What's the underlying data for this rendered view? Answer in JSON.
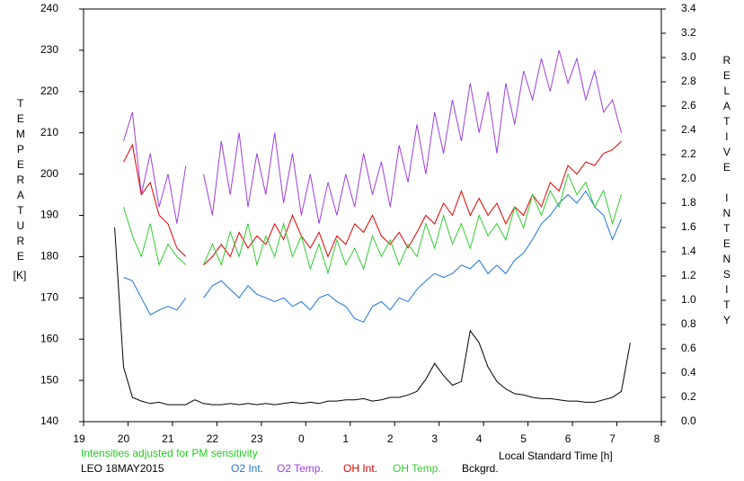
{
  "chart_data": {
    "type": "line",
    "ylabel": "TEMPERATURE",
    "yunit": "[K]",
    "y2label": "RELATIVE INTENSITY",
    "xlabel": "Local Standard Time [h]",
    "annotations": [
      "Intensities adjusted for PM sensitivity",
      "LEO 18MAY2015"
    ],
    "annotation_colors": [
      "#22cc22",
      "#000000"
    ],
    "xlim": [
      19,
      32
    ],
    "xticks": [
      19,
      20,
      21,
      22,
      23,
      {
        "value": 24,
        "label": "0"
      },
      {
        "value": 25,
        "label": "1"
      },
      {
        "value": 26,
        "label": "2"
      },
      {
        "value": 27,
        "label": "3"
      },
      {
        "value": 28,
        "label": "4"
      },
      {
        "value": 29,
        "label": "5"
      },
      {
        "value": 30,
        "label": "6"
      },
      {
        "value": 31,
        "label": "7"
      },
      {
        "value": 32,
        "label": "8"
      }
    ],
    "ylim": [
      140,
      240
    ],
    "yticks": [
      140,
      150,
      160,
      170,
      180,
      190,
      200,
      210,
      220,
      230,
      240
    ],
    "y2lim": [
      0,
      3.4
    ],
    "y2ticks": [
      {
        "value": 0,
        "label": "0.0"
      },
      0.2,
      0.4,
      0.6,
      0.8,
      {
        "value": 1,
        "label": "1.0"
      },
      1.2,
      1.4,
      1.6,
      1.8,
      {
        "value": 2,
        "label": "2.0"
      },
      2.2,
      2.4,
      2.6,
      2.8,
      {
        "value": 3,
        "label": "3.0"
      },
      3.2,
      3.4
    ],
    "x": [
      19.7,
      19.9,
      20.1,
      20.3,
      20.5,
      20.7,
      20.9,
      21.1,
      21.3,
      21.5,
      21.7,
      21.9,
      22.1,
      22.3,
      22.5,
      22.7,
      22.9,
      23.1,
      23.3,
      23.5,
      23.7,
      23.9,
      24.1,
      24.3,
      24.5,
      24.7,
      24.9,
      25.1,
      25.3,
      25.5,
      25.7,
      25.9,
      26.1,
      26.3,
      26.5,
      26.7,
      26.9,
      27.1,
      27.3,
      27.5,
      27.7,
      27.9,
      28.1,
      28.3,
      28.5,
      28.7,
      28.9,
      29.1,
      29.3,
      29.5,
      29.7,
      29.9,
      30.1,
      30.3,
      30.5,
      30.7,
      30.9,
      31.1,
      31.3,
      31.5
    ],
    "series": [
      {
        "name": "O2 Int.",
        "color": "#1f73d8",
        "axis": "y2",
        "values": [
          null,
          1.19,
          1.16,
          1.02,
          0.88,
          0.92,
          0.95,
          0.92,
          1.02,
          null,
          1.02,
          1.12,
          1.16,
          1.09,
          1.02,
          1.12,
          1.05,
          1.02,
          0.99,
          1.02,
          0.95,
          0.99,
          0.92,
          1.02,
          1.05,
          0.99,
          0.95,
          0.85,
          0.82,
          0.95,
          0.99,
          0.92,
          1.02,
          0.99,
          1.09,
          1.16,
          1.22,
          1.19,
          1.22,
          1.29,
          1.26,
          1.33,
          1.22,
          1.29,
          1.22,
          1.33,
          1.39,
          1.5,
          1.63,
          1.7,
          1.8,
          1.87,
          1.8,
          1.9,
          1.77,
          1.7,
          1.5,
          1.67,
          null,
          null
        ]
      },
      {
        "name": "O2 Temp.",
        "color": "#9b3fdc",
        "values": [
          null,
          208,
          215,
          195,
          205,
          192,
          200,
          188,
          202,
          null,
          200,
          190,
          208,
          195,
          210,
          192,
          205,
          195,
          210,
          193,
          205,
          190,
          200,
          188,
          198,
          190,
          200,
          192,
          205,
          195,
          203,
          192,
          207,
          198,
          212,
          200,
          215,
          205,
          218,
          208,
          222,
          210,
          220,
          205,
          222,
          212,
          225,
          218,
          228,
          220,
          230,
          222,
          228,
          218,
          225,
          215,
          218,
          210,
          null,
          null
        ]
      },
      {
        "name": "OH Int.",
        "color": "#e00000",
        "axis": "y2",
        "values": [
          null,
          2.14,
          2.28,
          1.87,
          1.97,
          1.7,
          1.63,
          1.43,
          1.36,
          null,
          1.29,
          1.36,
          1.46,
          1.36,
          1.56,
          1.43,
          1.53,
          1.46,
          1.63,
          1.5,
          1.7,
          1.53,
          1.43,
          1.56,
          1.36,
          1.53,
          1.46,
          1.63,
          1.56,
          1.7,
          1.53,
          1.46,
          1.56,
          1.43,
          1.56,
          1.7,
          1.63,
          1.8,
          1.7,
          1.9,
          1.7,
          1.84,
          1.7,
          1.8,
          1.63,
          1.77,
          1.7,
          1.87,
          1.77,
          1.97,
          1.9,
          2.11,
          2.04,
          2.14,
          2.11,
          2.21,
          2.24,
          2.31,
          null,
          null
        ]
      },
      {
        "name": "OH Temp.",
        "color": "#33cc33",
        "values": [
          null,
          192,
          185,
          180,
          188,
          178,
          183,
          180,
          178,
          null,
          178,
          183,
          178,
          186,
          180,
          188,
          178,
          185,
          180,
          188,
          180,
          185,
          177,
          183,
          176,
          184,
          178,
          182,
          177,
          185,
          180,
          184,
          178,
          183,
          180,
          188,
          182,
          190,
          183,
          188,
          182,
          190,
          185,
          188,
          184,
          192,
          187,
          195,
          190,
          196,
          192,
          200,
          195,
          198,
          192,
          196,
          188,
          195,
          null,
          null
        ]
      },
      {
        "name": "Bckgrd.",
        "color": "#000000",
        "axis": "y2",
        "values": [
          1.6,
          0.45,
          0.2,
          0.17,
          0.15,
          0.16,
          0.14,
          0.14,
          0.14,
          0.18,
          0.15,
          0.14,
          0.14,
          0.15,
          0.14,
          0.15,
          0.14,
          0.15,
          0.14,
          0.15,
          0.16,
          0.15,
          0.16,
          0.15,
          0.17,
          0.17,
          0.18,
          0.18,
          0.19,
          0.17,
          0.18,
          0.2,
          0.2,
          0.22,
          0.25,
          0.35,
          0.48,
          0.38,
          0.3,
          0.33,
          0.75,
          0.65,
          0.45,
          0.33,
          0.27,
          0.23,
          0.22,
          0.2,
          0.19,
          0.19,
          0.18,
          0.17,
          0.17,
          0.16,
          0.16,
          0.18,
          0.2,
          0.25,
          0.65,
          null
        ]
      }
    ]
  }
}
